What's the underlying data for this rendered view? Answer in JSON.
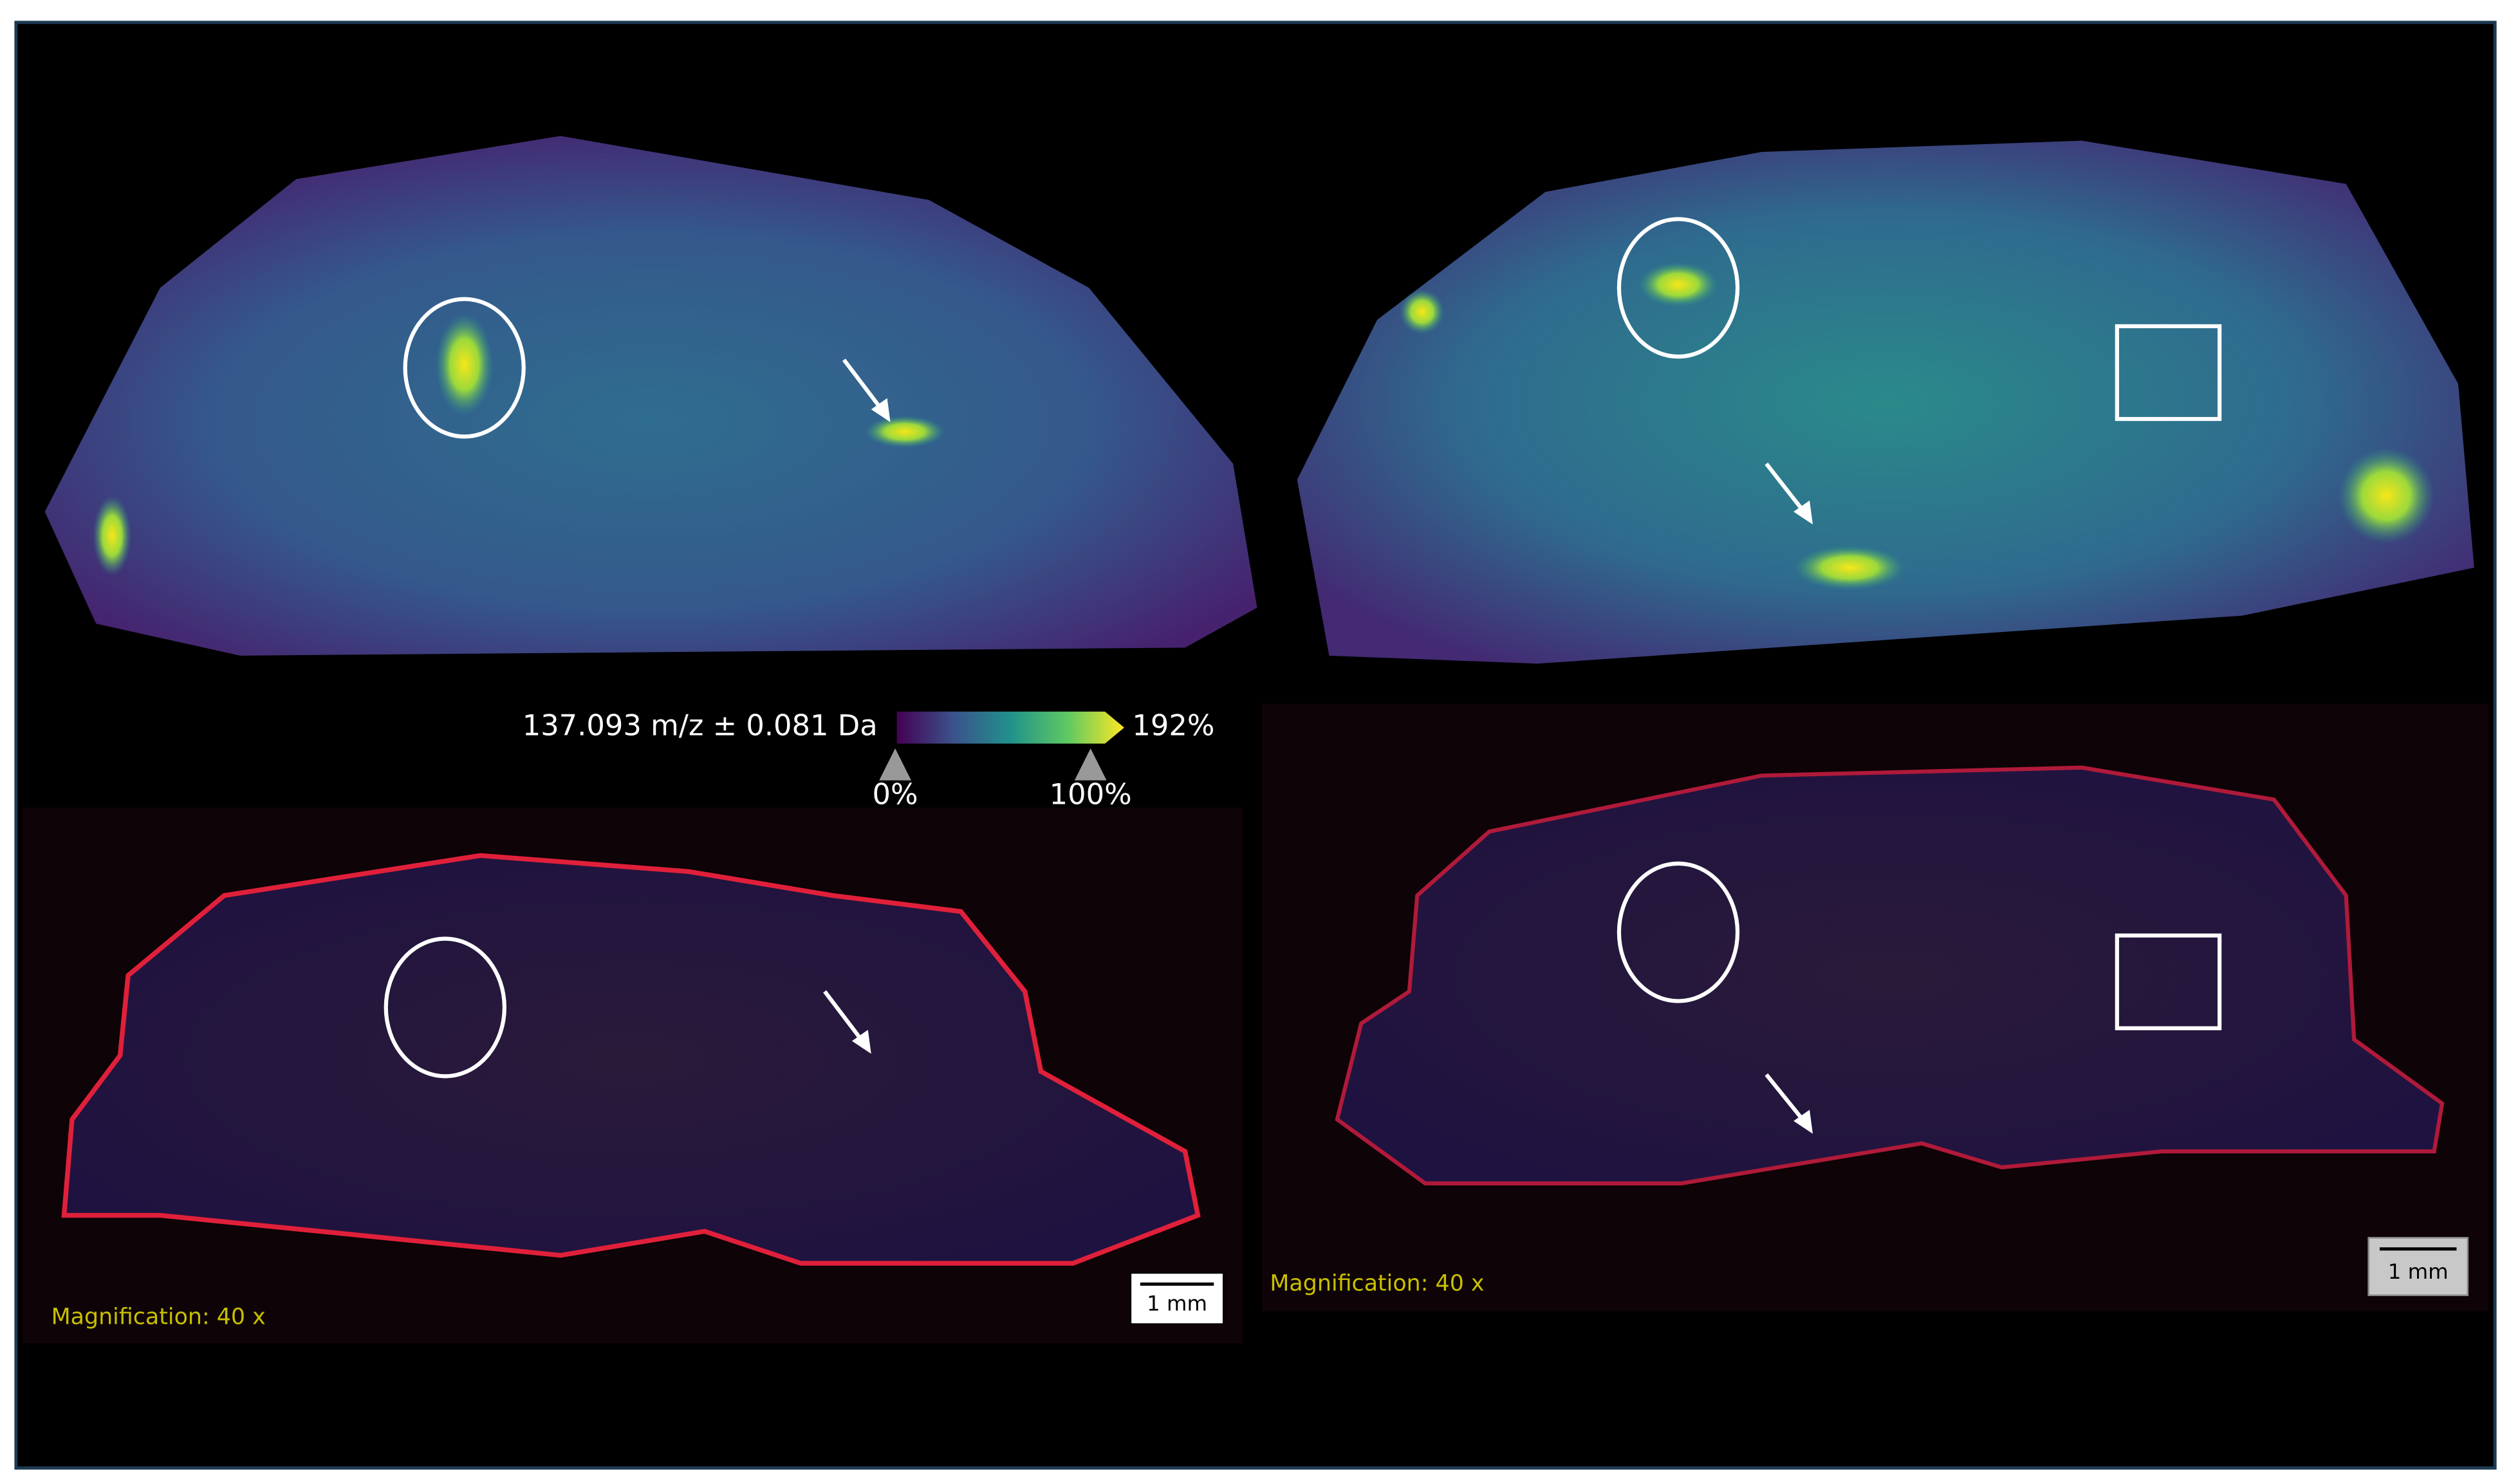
{
  "colorbar": {
    "label": "137.093 m/z ± 0.081 Da",
    "max_label": "192%",
    "ticks": [
      "0%",
      "100%"
    ]
  },
  "panels": [
    {
      "magnification": "Magnification:  40 x",
      "scale_bar": "1 mm"
    },
    {
      "magnification": "Magnification:  40 x",
      "scale_bar": "1 mm"
    }
  ]
}
